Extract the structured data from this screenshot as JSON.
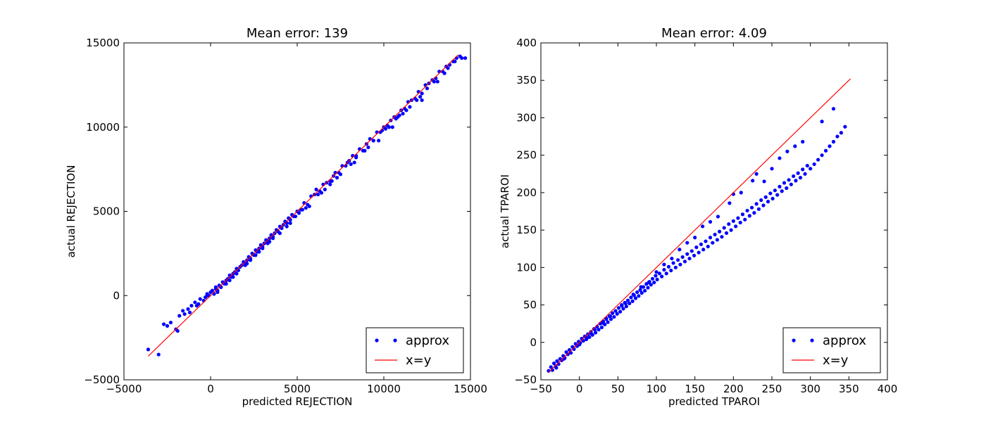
{
  "chart_data": [
    {
      "type": "scatter",
      "title": "Mean error: 139",
      "xlabel": "predicted REJECTION",
      "ylabel": "actual REJECTION",
      "xlim": [
        -5000,
        15000
      ],
      "ylim": [
        -5000,
        15000
      ],
      "xticks": [
        -5000,
        0,
        5000,
        10000,
        15000
      ],
      "yticks": [
        -5000,
        0,
        5000,
        10000,
        15000
      ],
      "xtick_labels": [
        "−5000",
        "0",
        "5000",
        "10000",
        "15000"
      ],
      "ytick_labels": [
        "−5000",
        "0",
        "5000",
        "10000",
        "15000"
      ],
      "grid": false,
      "legend_position": "lower-right",
      "series": [
        {
          "name": "approx",
          "kind": "points",
          "color": "#0000ff",
          "x": [
            -3600,
            -3000,
            -2700,
            -2500,
            -2300,
            -2000,
            -1800,
            -1600,
            -1500,
            -1300,
            -1100,
            -900,
            -700,
            -600,
            -400,
            -300,
            -200,
            -100,
            0,
            100,
            200,
            300,
            400,
            500,
            600,
            700,
            800,
            900,
            1000,
            1100,
            1200,
            1300,
            1400,
            1500,
            1600,
            1700,
            1800,
            1900,
            2000,
            2100,
            2200,
            2300,
            2400,
            2500,
            2600,
            2700,
            2800,
            2900,
            3000,
            3100,
            3200,
            3300,
            3400,
            3500,
            3600,
            3700,
            3800,
            3900,
            4000,
            4100,
            4200,
            4300,
            4400,
            4500,
            4600,
            4700,
            4800,
            5000,
            5200,
            5400,
            5600,
            5800,
            6000,
            6100,
            6300,
            6500,
            6700,
            6900,
            7100,
            7200,
            7400,
            7600,
            7800,
            8000,
            8200,
            8400,
            8600,
            8800,
            9000,
            9200,
            9400,
            9600,
            9800,
            10000,
            10200,
            10400,
            10600,
            10800,
            11000,
            11200,
            11400,
            11600,
            11800,
            12000,
            12200,
            12400,
            12600,
            12800,
            13000,
            13200,
            13400,
            13600,
            13800,
            14000,
            14200,
            14400,
            14700,
            10500,
            11500,
            12200,
            9700,
            8100,
            6900,
            5700,
            4400,
            3300,
            2300,
            1300,
            600,
            400,
            300,
            1100,
            1600,
            2000,
            2600,
            3000,
            3600,
            4100,
            4600,
            5100,
            5500,
            6200,
            6600,
            7000,
            7500,
            7900,
            8400,
            8900,
            9400,
            9900,
            10300,
            10900,
            11300,
            11900,
            12500,
            13100,
            13500,
            14100,
            14500,
            -1900,
            -1200,
            -800,
            -200,
            200,
            900,
            1500,
            2100,
            2800,
            3400,
            4000,
            4900,
            5300,
            6400,
            7300,
            8300,
            9100,
            10100,
            10700,
            11100,
            12100,
            12900,
            13700
          ],
          "y": [
            -3200,
            -3500,
            -1700,
            -1800,
            -1600,
            -2000,
            -1200,
            -900,
            -1100,
            -800,
            -600,
            -400,
            -500,
            -200,
            -300,
            -100,
            100,
            0,
            200,
            300,
            100,
            400,
            300,
            600,
            500,
            800,
            700,
            900,
            1000,
            1200,
            1100,
            1300,
            1400,
            1600,
            1500,
            1700,
            1800,
            2000,
            1900,
            2100,
            2300,
            2200,
            2500,
            2400,
            2700,
            2600,
            2800,
            3000,
            2900,
            3100,
            3300,
            3200,
            3400,
            3600,
            3500,
            3700,
            3900,
            3800,
            4100,
            4000,
            4200,
            4400,
            4300,
            4600,
            4500,
            4800,
            4700,
            5000,
            5100,
            5500,
            5400,
            5900,
            6000,
            6300,
            6200,
            6600,
            6700,
            6800,
            7100,
            7300,
            7300,
            7700,
            7700,
            8000,
            8300,
            8300,
            8700,
            8600,
            9000,
            9300,
            9200,
            9700,
            9700,
            10000,
            10100,
            10400,
            10600,
            10600,
            11000,
            11100,
            11500,
            11600,
            11700,
            12100,
            12000,
            12500,
            12600,
            12800,
            12900,
            13300,
            13300,
            13600,
            13700,
            13900,
            14100,
            14200,
            14100,
            10000,
            11200,
            11600,
            9200,
            7800,
            6600,
            5300,
            4100,
            3100,
            2100,
            1100,
            500,
            200,
            500,
            900,
            1500,
            1800,
            2400,
            2800,
            3400,
            4000,
            4300,
            4900,
            5200,
            6000,
            6300,
            6800,
            7200,
            7900,
            8200,
            8600,
            9200,
            9800,
            10000,
            10700,
            11000,
            11600,
            12300,
            12700,
            13200,
            13900,
            14100,
            -2100,
            -1000,
            -600,
            0,
            100,
            700,
            1300,
            1900,
            2600,
            3200,
            3700,
            4700,
            5100,
            6100,
            7000,
            7900,
            8800,
            9900,
            10500,
            10800,
            11800,
            12700,
            13500
          ]
        },
        {
          "name": "x=y",
          "kind": "line",
          "color": "#ff0000",
          "x": [
            -3600,
            14300
          ],
          "y": [
            -3600,
            14300
          ]
        }
      ]
    },
    {
      "type": "scatter",
      "title": "Mean error: 4.09",
      "xlabel": "predicted TPAROI",
      "ylabel": "actual TPAROI",
      "xlim": [
        -50,
        400
      ],
      "ylim": [
        -50,
        400
      ],
      "xticks": [
        -50,
        0,
        50,
        100,
        150,
        200,
        250,
        300,
        350,
        400
      ],
      "yticks": [
        -50,
        0,
        50,
        100,
        150,
        200,
        250,
        300,
        350,
        400
      ],
      "xtick_labels": [
        "−50",
        "0",
        "50",
        "100",
        "150",
        "200",
        "250",
        "300",
        "350",
        "400"
      ],
      "ytick_labels": [
        "−50",
        "0",
        "50",
        "100",
        "150",
        "200",
        "250",
        "300",
        "350",
        "400"
      ],
      "grid": false,
      "legend_position": "lower-right",
      "series": [
        {
          "name": "approx",
          "kind": "points",
          "color": "#0000ff",
          "x": [
            -40,
            -37,
            -35,
            -33,
            -31,
            -29,
            -27,
            -25,
            -23,
            -21,
            -19,
            -17,
            -15,
            -13,
            -11,
            -9,
            -7,
            -5,
            -3,
            -1,
            1,
            3,
            5,
            7,
            9,
            11,
            13,
            15,
            17,
            19,
            21,
            23,
            25,
            27,
            29,
            31,
            33,
            35,
            37,
            39,
            41,
            43,
            45,
            47,
            49,
            51,
            53,
            55,
            57,
            59,
            61,
            63,
            65,
            67,
            69,
            71,
            73,
            75,
            77,
            79,
            81,
            83,
            85,
            87,
            89,
            91,
            93,
            95,
            97,
            99,
            101,
            104,
            107,
            110,
            113,
            116,
            119,
            122,
            125,
            128,
            131,
            134,
            137,
            140,
            143,
            146,
            149,
            152,
            155,
            158,
            161,
            164,
            167,
            170,
            173,
            176,
            179,
            182,
            185,
            188,
            191,
            194,
            197,
            200,
            203,
            206,
            209,
            212,
            215,
            218,
            221,
            224,
            227,
            230,
            233,
            236,
            239,
            242,
            245,
            248,
            251,
            254,
            257,
            260,
            263,
            266,
            269,
            272,
            275,
            278,
            281,
            284,
            287,
            290,
            293,
            296,
            300,
            305,
            310,
            315,
            320,
            325,
            330,
            335,
            340,
            345,
            240,
            250,
            260,
            200,
            210,
            150,
            160,
            120,
            90,
            60,
            30,
            10,
            -20,
            270,
            280,
            230,
            180,
            140,
            100,
            70,
            40,
            20,
            0,
            -30,
            290,
            315,
            330,
            225,
            195,
            170,
            130,
            110,
            80,
            55,
            35,
            15
          ],
          "y": [
            -38,
            -33,
            -37,
            -28,
            -32,
            -25,
            -29,
            -22,
            -24,
            -18,
            -21,
            -13,
            -16,
            -10,
            -14,
            -6,
            -9,
            -2,
            -5,
            1,
            -1,
            5,
            2,
            8,
            4,
            11,
            7,
            14,
            10,
            18,
            13,
            21,
            17,
            25,
            20,
            28,
            24,
            32,
            27,
            35,
            31,
            39,
            34,
            42,
            38,
            46,
            41,
            49,
            45,
            53,
            48,
            56,
            52,
            60,
            55,
            63,
            59,
            67,
            62,
            70,
            66,
            74,
            69,
            78,
            73,
            81,
            77,
            85,
            80,
            89,
            84,
            92,
            88,
            97,
            92,
            101,
            96,
            106,
            100,
            110,
            104,
            114,
            108,
            118,
            112,
            122,
            116,
            127,
            120,
            131,
            124,
            135,
            128,
            140,
            133,
            144,
            137,
            148,
            141,
            153,
            146,
            158,
            150,
            162,
            155,
            166,
            160,
            171,
            164,
            176,
            169,
            180,
            173,
            185,
            178,
            190,
            183,
            194,
            188,
            199,
            192,
            203,
            197,
            208,
            202,
            213,
            206,
            217,
            211,
            222,
            216,
            226,
            220,
            231,
            225,
            236,
            232,
            238,
            244,
            250,
            256,
            262,
            268,
            275,
            280,
            288,
            215,
            232,
            246,
            198,
            200,
            140,
            155,
            112,
            80,
            52,
            26,
            6,
            -22,
            255,
            262,
            225,
            168,
            133,
            94,
            64,
            35,
            17,
            -3,
            -34,
            268,
            295,
            312,
            216,
            186,
            161,
            124,
            104,
            74,
            50,
            31,
            12
          ]
        },
        {
          "name": "x=y",
          "kind": "line",
          "color": "#ff0000",
          "x": [
            -40,
            352
          ],
          "y": [
            -40,
            352
          ]
        }
      ]
    }
  ]
}
